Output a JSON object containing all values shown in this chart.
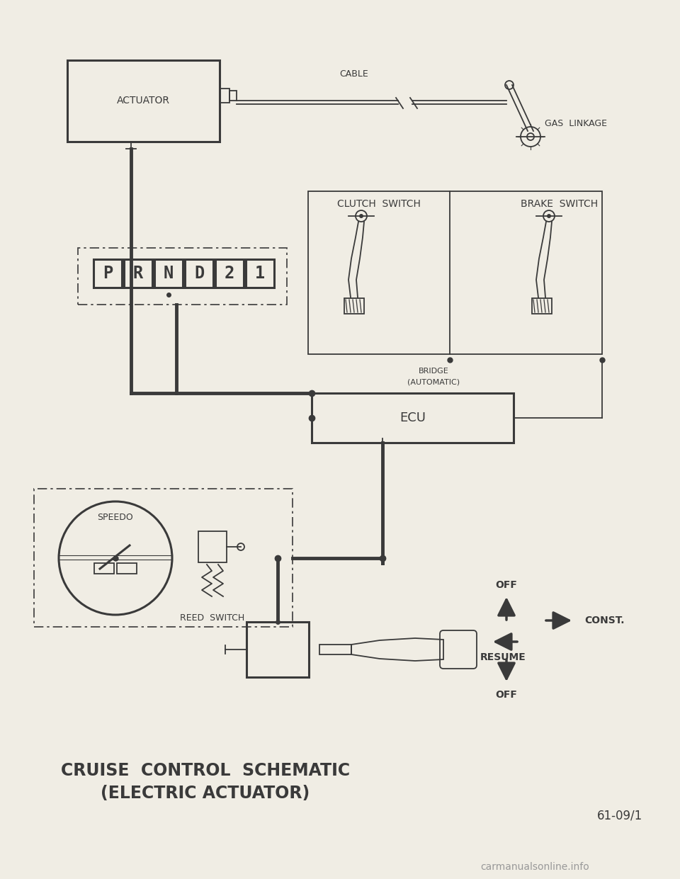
{
  "bg_color": "#f0ede4",
  "line_color": "#3a3a3a",
  "title1": "CRUISE  CONTROL  SCHEMATIC",
  "title2": "(ELECTRIC ACTUATOR)",
  "page_ref": "61-09/1",
  "watermark": "carmanualsonline.info",
  "labels": {
    "actuator": "ACTUATOR",
    "cable": "CABLE",
    "gas_linkage": "GAS  LINKAGE",
    "clutch_switch": "CLUTCH  SWITCH",
    "brake_switch": "BRAKE  SWITCH",
    "bridge": "BRIDGE",
    "automatic": "(AUTOMATIC)",
    "ecu": "ECU",
    "speedo": "SPEEDO",
    "reed_switch": "REED  SWITCH",
    "off_top": "OFF",
    "const": "CONST.",
    "resume": "RESUME",
    "off_bottom": "OFF",
    "prnd21": [
      "P",
      "R",
      "N",
      "D",
      "2",
      "1"
    ]
  }
}
